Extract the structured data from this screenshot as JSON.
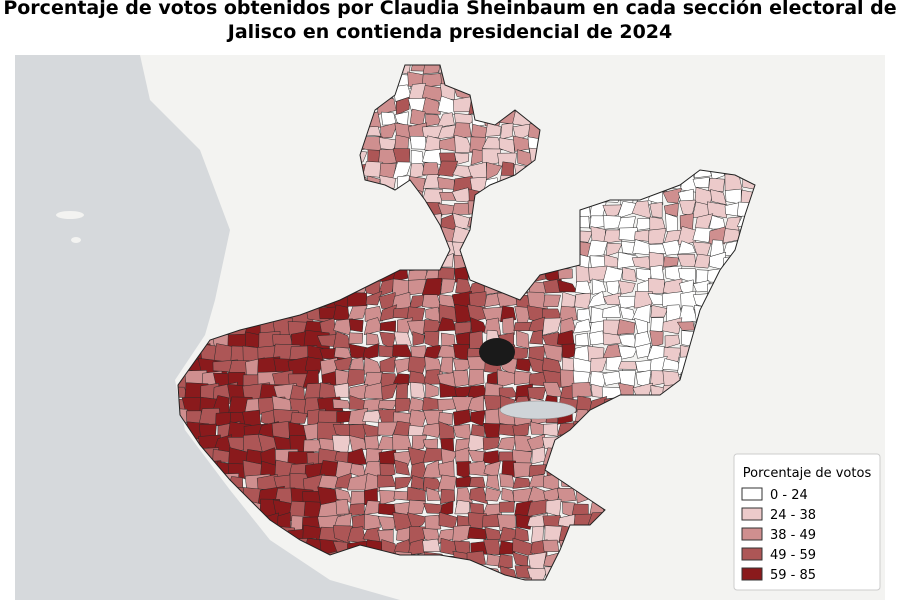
{
  "title": "Porcentaje de votos obtenidos por Claudia Sheinbaum en cada sección electoral de Jalisco en contienda presidencial de 2024",
  "legend": {
    "title": "Porcentaje de votos",
    "items": [
      {
        "label": "0 - 24",
        "color": "#ffffff"
      },
      {
        "label": "24 - 38",
        "color": "#eccaca"
      },
      {
        "label": "38 - 49",
        "color": "#cf8f8f"
      },
      {
        "label": "49 - 59",
        "color": "#ad5656"
      },
      {
        "label": "59 - 85",
        "color": "#8a1a1c"
      }
    ]
  }
}
